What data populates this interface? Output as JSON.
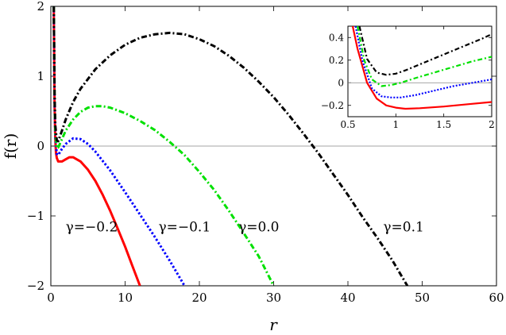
{
  "chart_data": [
    {
      "type": "line",
      "xlabel": "r",
      "ylabel": "f(r)",
      "xlim": [
        0,
        60
      ],
      "ylim": [
        -2,
        2
      ],
      "xticks": [
        0,
        10,
        20,
        30,
        40,
        50,
        60
      ],
      "yticks": [
        -2,
        -1,
        0,
        1,
        2
      ],
      "xtick_labels": [
        "0",
        "10",
        "20",
        "30",
        "40",
        "50",
        "60"
      ],
      "ytick_labels": [
        "−2",
        "−1",
        "0",
        "1",
        "2"
      ],
      "grid": false,
      "series": [
        {
          "name": "γ=−0.2",
          "color": "#ff0000",
          "style": "solid",
          "x": [
            0.4,
            0.5,
            0.6,
            0.7,
            0.8,
            1.0,
            1.5,
            2.0,
            2.5,
            3.0,
            4.0,
            5.0,
            6.0,
            7.0,
            8.0,
            9.0,
            10.0,
            11.0,
            12.0
          ],
          "y": [
            2.0,
            0.6,
            0.1,
            -0.1,
            -0.17,
            -0.22,
            -0.22,
            -0.19,
            -0.16,
            -0.16,
            -0.22,
            -0.34,
            -0.5,
            -0.7,
            -0.93,
            -1.18,
            -1.44,
            -1.72,
            -2.0
          ]
        },
        {
          "name": "γ=−0.1",
          "color": "#0000ff",
          "style": "dotted",
          "x": [
            0.4,
            0.5,
            0.6,
            0.8,
            1.0,
            1.5,
            2.0,
            3.0,
            4.0,
            5.0,
            6.0,
            8.0,
            10.0,
            12.0,
            14.0,
            16.0,
            18.0
          ],
          "y": [
            2.0,
            0.6,
            0.12,
            -0.11,
            -0.13,
            -0.04,
            0.03,
            0.11,
            0.1,
            0.03,
            -0.08,
            -0.35,
            -0.66,
            -0.98,
            -1.3,
            -1.64,
            -2.0
          ]
        },
        {
          "name": "γ=0.0",
          "color": "#00e000",
          "style": "dashdot",
          "x": [
            0.4,
            0.5,
            0.6,
            0.8,
            1.0,
            1.5,
            2.0,
            3.0,
            4.0,
            5.0,
            6.0,
            7.0,
            8.0,
            10.0,
            12.0,
            14.0,
            16.0,
            18.0,
            20.0,
            22.0,
            24.0,
            26.0,
            28.0,
            30.0
          ],
          "y": [
            2.0,
            0.7,
            0.2,
            -0.03,
            -0.02,
            0.1,
            0.22,
            0.38,
            0.49,
            0.55,
            0.57,
            0.57,
            0.55,
            0.47,
            0.36,
            0.23,
            0.06,
            -0.13,
            -0.37,
            -0.63,
            -0.93,
            -1.25,
            -1.58,
            -2.0
          ]
        },
        {
          "name": "γ=0.1",
          "color": "#000000",
          "style": "dashdot",
          "x": [
            0.4,
            0.5,
            0.6,
            0.8,
            1.0,
            1.5,
            2.0,
            3.0,
            4.0,
            6.0,
            8.0,
            10.0,
            12.0,
            14.0,
            16.0,
            18.0,
            20.0,
            22.0,
            24.0,
            26.0,
            28.0,
            30.0,
            32.0,
            34.0,
            36.0,
            38.0,
            40.0,
            42.0,
            44.0,
            46.0,
            48.0
          ],
          "y": [
            2.0,
            0.75,
            0.3,
            0.08,
            0.07,
            0.22,
            0.38,
            0.63,
            0.82,
            1.1,
            1.3,
            1.45,
            1.55,
            1.6,
            1.62,
            1.6,
            1.53,
            1.43,
            1.29,
            1.12,
            0.92,
            0.7,
            0.45,
            0.18,
            -0.1,
            -0.4,
            -0.7,
            -1.02,
            -1.32,
            -1.64,
            -2.0
          ]
        }
      ],
      "annotations": [
        {
          "text": "γ=−0.2",
          "x": 5.5,
          "y": -1.22
        },
        {
          "text": "γ=−0.1",
          "x": 18.0,
          "y": -1.22
        },
        {
          "text": "γ=0.0",
          "x": 28.0,
          "y": -1.22
        },
        {
          "text": "γ=0.1",
          "x": 47.5,
          "y": -1.22
        }
      ]
    },
    {
      "type": "line",
      "role": "inset",
      "xlim": [
        0.5,
        2.0
      ],
      "ylim": [
        -0.3,
        0.5
      ],
      "xticks": [
        0.5,
        1.0,
        1.5,
        2.0
      ],
      "yticks": [
        -0.2,
        0.0,
        0.2,
        0.4
      ],
      "xtick_labels": [
        "0.5",
        "1",
        "1.5",
        "2"
      ],
      "ytick_labels": [
        "−0.2",
        "0",
        "0.2",
        "0.4"
      ],
      "grid": false,
      "series": [
        {
          "name": "γ=−0.2",
          "color": "#ff0000",
          "style": "solid",
          "x": [
            0.55,
            0.6,
            0.7,
            0.8,
            0.9,
            1.0,
            1.1,
            1.25,
            1.5,
            1.75,
            2.0
          ],
          "y": [
            0.5,
            0.3,
            0.0,
            -0.14,
            -0.2,
            -0.22,
            -0.23,
            -0.225,
            -0.21,
            -0.19,
            -0.17
          ]
        },
        {
          "name": "γ=−0.1",
          "color": "#0000ff",
          "style": "dotted",
          "x": [
            0.58,
            0.65,
            0.75,
            0.85,
            0.95,
            1.05,
            1.2,
            1.4,
            1.6,
            1.8,
            2.0
          ],
          "y": [
            0.5,
            0.2,
            -0.05,
            -0.12,
            -0.13,
            -0.13,
            -0.11,
            -0.07,
            -0.03,
            0.0,
            0.03
          ]
        },
        {
          "name": "γ=0.0",
          "color": "#00e000",
          "style": "dashdot",
          "x": [
            0.6,
            0.67,
            0.75,
            0.85,
            0.95,
            1.05,
            1.2,
            1.4,
            1.6,
            1.8,
            2.0
          ],
          "y": [
            0.5,
            0.2,
            0.03,
            -0.03,
            -0.02,
            0.0,
            0.04,
            0.09,
            0.14,
            0.19,
            0.23
          ]
        },
        {
          "name": "γ=0.1",
          "color": "#000000",
          "style": "dashdot",
          "x": [
            0.62,
            0.7,
            0.8,
            0.9,
            1.0,
            1.1,
            1.3,
            1.5,
            1.7,
            1.9,
            2.0
          ],
          "y": [
            0.5,
            0.21,
            0.09,
            0.07,
            0.08,
            0.11,
            0.18,
            0.25,
            0.32,
            0.39,
            0.43
          ]
        }
      ]
    }
  ]
}
